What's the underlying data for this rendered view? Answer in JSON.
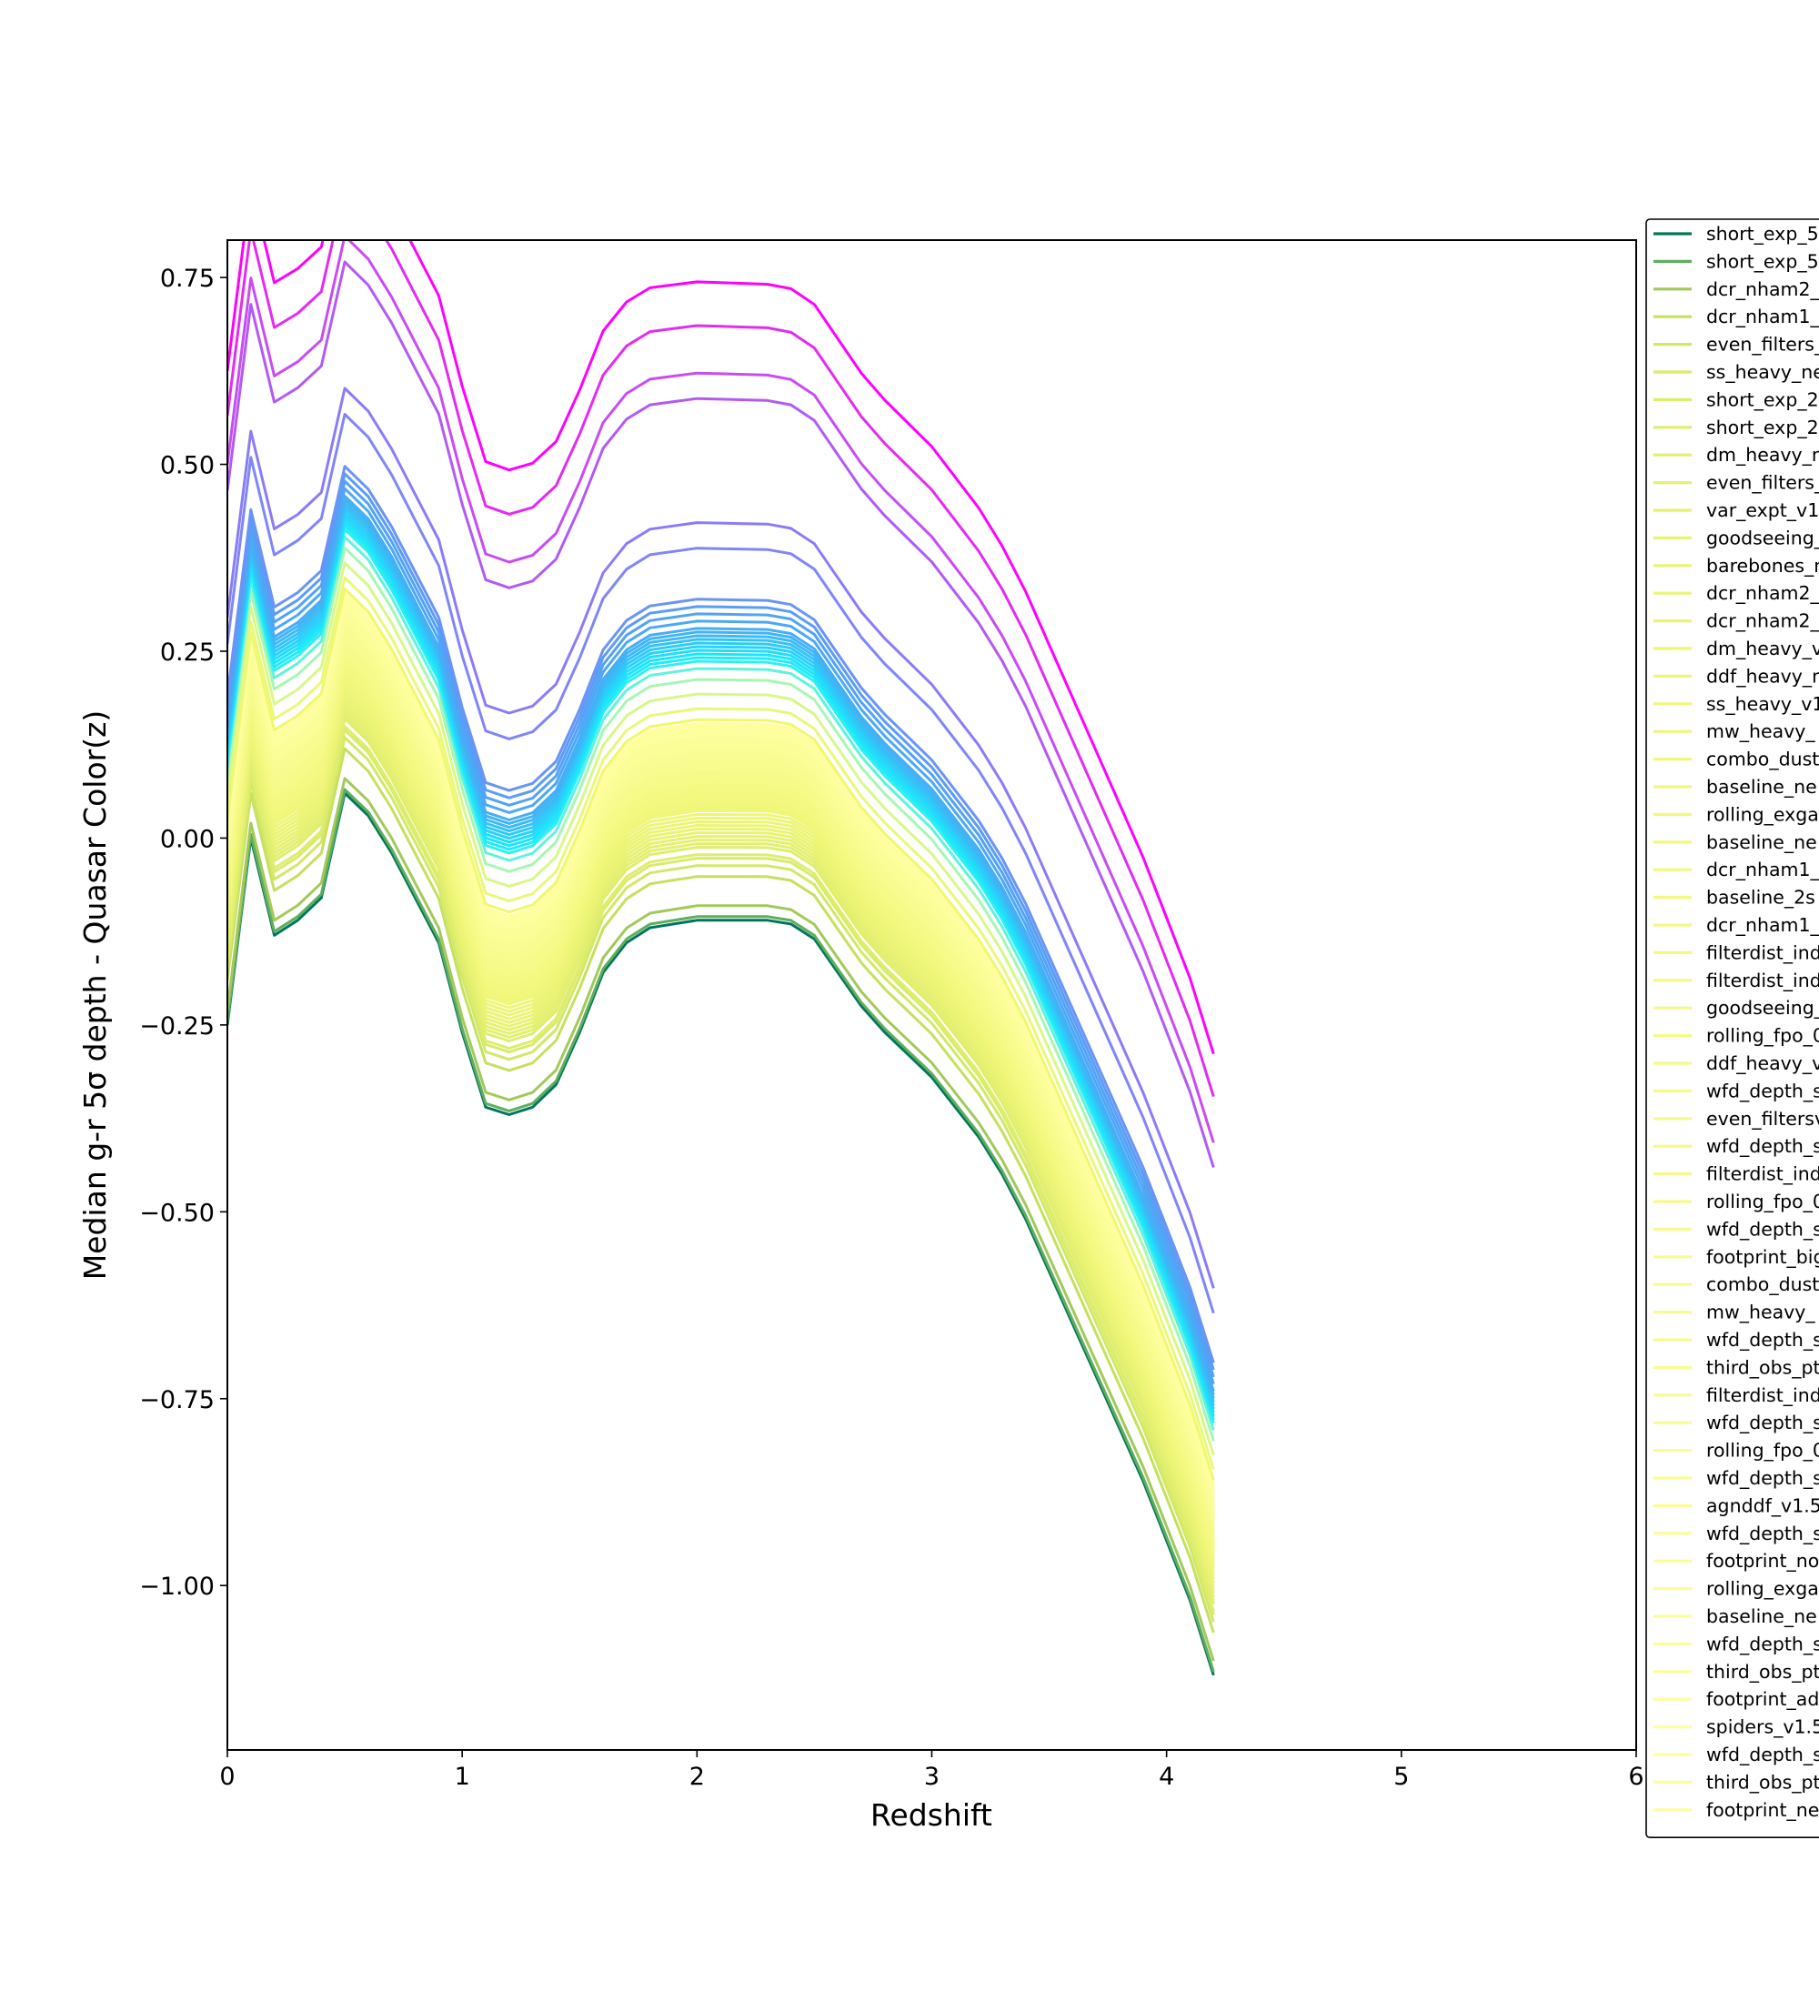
{
  "chart_data": {
    "type": "line",
    "xlabel": "Redshift",
    "ylabel": "Median g-r 5σ depth - Quasar Color(z)",
    "xlim": [
      0,
      6
    ],
    "ylim": [
      -1.22,
      0.8
    ],
    "x_ticks": [
      "0",
      "1",
      "2",
      "3",
      "4",
      "5",
      "6"
    ],
    "y_ticks": [
      "0.75",
      "0.50",
      "0.25",
      "0.00",
      "−0.25",
      "−0.50",
      "−0.75",
      "−1.00"
    ],
    "x_tick_values": [
      0,
      1,
      2,
      3,
      4,
      5,
      6
    ],
    "y_tick_values": [
      0.75,
      0.5,
      0.25,
      0.0,
      -0.25,
      -0.5,
      -0.75,
      -1.0
    ],
    "grid": false,
    "legend_placement": "outside right, clipped at figure edge",
    "colormap_note": "lines colored along a green-yellow-cyan-blue-magenta scale from lowest to highest",
    "x": [
      0,
      0.1,
      0.2,
      0.3,
      0.4,
      0.5,
      0.6,
      0.7,
      0.8,
      0.9,
      1.0,
      1.1,
      1.2,
      1.3,
      1.4,
      1.5,
      1.6,
      1.7,
      1.8,
      1.9,
      2.0,
      2.1,
      2.2,
      2.3,
      2.4,
      2.5,
      2.6,
      2.7,
      2.8,
      2.9,
      3.0,
      3.1,
      3.2,
      3.3,
      3.4,
      3.5,
      3.6,
      3.7,
      3.8,
      3.9,
      4.0,
      4.1,
      4.2
    ],
    "base_curve": [
      -0.25,
      0.0,
      -0.13,
      -0.11,
      -0.08,
      0.06,
      0.03,
      -0.02,
      -0.08,
      -0.14,
      -0.26,
      -0.36,
      -0.37,
      -0.36,
      -0.33,
      -0.26,
      -0.18,
      -0.14,
      -0.12,
      -0.115,
      -0.11,
      -0.11,
      -0.11,
      -0.11,
      -0.115,
      -0.135,
      -0.18,
      -0.225,
      -0.26,
      -0.29,
      -0.32,
      -0.36,
      -0.4,
      -0.45,
      -0.51,
      -0.58,
      -0.65,
      -0.72,
      -0.79,
      -0.86,
      -0.94,
      -1.02,
      -1.12
    ],
    "series": [
      {
        "name": "short_exp_5",
        "color": "#00775a",
        "offset": 0.0
      },
      {
        "name": "short_exp_5",
        "color": "#5fae5f",
        "offset": 0.005
      },
      {
        "name": "dcr_nham2_",
        "color": "#a3c95b",
        "offset": 0.02
      },
      {
        "name": "dcr_nham1_",
        "color": "#c6e060",
        "offset": 0.06
      },
      {
        "name": "even_filters_",
        "color": "#d3e868",
        "offset": 0.075
      },
      {
        "name": "ss_heavy_ne",
        "color": "#daeb6a",
        "offset": 0.085
      },
      {
        "name": "short_exp_2",
        "color": "#deed6c",
        "offset": 0.09
      },
      {
        "name": "short_exp_2",
        "color": "#e0ee6e",
        "offset": 0.1
      },
      {
        "name": "dm_heavy_n",
        "color": "#e2ef70",
        "offset": 0.105
      },
      {
        "name": "even_filters_",
        "color": "#e4f071",
        "offset": 0.11
      },
      {
        "name": "var_expt_v1",
        "color": "#e6f172",
        "offset": 0.115
      },
      {
        "name": "goodseeing_",
        "color": "#e8f273",
        "offset": 0.12
      },
      {
        "name": "barebones_n",
        "color": "#eaf374",
        "offset": 0.125
      },
      {
        "name": "dcr_nham2_",
        "color": "#ebf475",
        "offset": 0.13
      },
      {
        "name": "dcr_nham2_",
        "color": "#ecf476",
        "offset": 0.135
      },
      {
        "name": "dm_heavy_v",
        "color": "#edf577",
        "offset": 0.14
      },
      {
        "name": "ddf_heavy_n",
        "color": "#eef578",
        "offset": 0.145
      },
      {
        "name": "ss_heavy_v1",
        "color": "#eff679",
        "offset": 0.15
      },
      {
        "name": "mw_heavy_",
        "color": "#f0f67a",
        "offset": 0.153
      },
      {
        "name": "combo_dust",
        "color": "#f1f77b",
        "offset": 0.156
      },
      {
        "name": "baseline_ne",
        "color": "#f1f77c",
        "offset": 0.159
      },
      {
        "name": "rolling_exga",
        "color": "#f2f77d",
        "offset": 0.162
      },
      {
        "name": "baseline_ne",
        "color": "#f2f87e",
        "offset": 0.165
      },
      {
        "name": "dcr_nham1_",
        "color": "#f3f87f",
        "offset": 0.168
      },
      {
        "name": "baseline_2s",
        "color": "#f3f880",
        "offset": 0.171
      },
      {
        "name": "dcr_nham1_",
        "color": "#f4f881",
        "offset": 0.174
      },
      {
        "name": "filterdist_ind",
        "color": "#f4f982",
        "offset": 0.177
      },
      {
        "name": "filterdist_ind",
        "color": "#f4f983",
        "offset": 0.18
      },
      {
        "name": "goodseeing_",
        "color": "#f5f984",
        "offset": 0.183
      },
      {
        "name": "rolling_fpo_0",
        "color": "#f5f985",
        "offset": 0.186
      },
      {
        "name": "ddf_heavy_v",
        "color": "#f5f986",
        "offset": 0.189
      },
      {
        "name": "wfd_depth_s",
        "color": "#f6fa87",
        "offset": 0.192
      },
      {
        "name": "even_filtersv",
        "color": "#f6fa88",
        "offset": 0.195
      },
      {
        "name": "wfd_depth_s",
        "color": "#f6fa89",
        "offset": 0.198
      },
      {
        "name": "filterdist_ind",
        "color": "#f7fa8a",
        "offset": 0.201
      },
      {
        "name": "rolling_fpo_0",
        "color": "#f7fa8b",
        "offset": 0.204
      },
      {
        "name": "wfd_depth_s",
        "color": "#f7fb8c",
        "offset": 0.207
      },
      {
        "name": "footprint_big",
        "color": "#f8fb8d",
        "offset": 0.21
      },
      {
        "name": "combo_dust",
        "color": "#f8fb8e",
        "offset": 0.213
      },
      {
        "name": "mw_heavy_",
        "color": "#f8fb8f",
        "offset": 0.216
      },
      {
        "name": "wfd_depth_s",
        "color": "#f9fb90",
        "offset": 0.219
      },
      {
        "name": "third_obs_pt",
        "color": "#f9fc91",
        "offset": 0.222
      },
      {
        "name": "filterdist_ind",
        "color": "#f9fc92",
        "offset": 0.225
      },
      {
        "name": "wfd_depth_s",
        "color": "#fafc93",
        "offset": 0.228
      },
      {
        "name": "rolling_fpo_0",
        "color": "#fafc94",
        "offset": 0.231
      },
      {
        "name": "wfd_depth_s",
        "color": "#fafc95",
        "offset": 0.234
      },
      {
        "name": "agnddf_v1.5",
        "color": "#fbfd96",
        "offset": 0.237
      },
      {
        "name": "wfd_depth_s",
        "color": "#fbfd97",
        "offset": 0.24
      },
      {
        "name": "footprint_no",
        "color": "#fbfd98",
        "offset": 0.243
      },
      {
        "name": "rolling_exga",
        "color": "#fcfd99",
        "offset": 0.246
      },
      {
        "name": "baseline_ne",
        "color": "#fcfd9a",
        "offset": 0.249
      },
      {
        "name": "wfd_depth_s",
        "color": "#fcfd9b",
        "offset": 0.252
      },
      {
        "name": "third_obs_pt",
        "color": "#fdfe9c",
        "offset": 0.255
      },
      {
        "name": "footprint_ad",
        "color": "#fdfe9d",
        "offset": 0.258
      },
      {
        "name": "spiders_v1.5",
        "color": "#fdfe9e",
        "offset": 0.261
      },
      {
        "name": "wfd_depth_s",
        "color": "#fefe9f",
        "offset": 0.264
      },
      {
        "name": "third_obs_pt",
        "color": "#fefea0",
        "offset": 0.267
      },
      {
        "name": "footprint_ne",
        "color": "#fefea1",
        "offset": 0.27
      },
      {
        "color": "#f0f870",
        "offset": 0.275
      },
      {
        "color": "#eaf87a",
        "offset": 0.29
      },
      {
        "color": "#d8f88a",
        "offset": 0.31
      },
      {
        "color": "#a8f6b4",
        "offset": 0.33
      },
      {
        "color": "#60f2e0",
        "offset": 0.345
      },
      {
        "color": "#2ef0f4",
        "offset": 0.355
      },
      {
        "color": "#22eaf8",
        "offset": 0.36
      },
      {
        "color": "#1ee4fa",
        "offset": 0.365
      },
      {
        "color": "#22dcfa",
        "offset": 0.37
      },
      {
        "color": "#28d2fa",
        "offset": 0.375
      },
      {
        "color": "#2ecafa",
        "offset": 0.38
      },
      {
        "color": "#34c2f8",
        "offset": 0.385
      },
      {
        "color": "#3abaf6",
        "offset": 0.39
      },
      {
        "color": "#40b4f6",
        "offset": 0.395
      },
      {
        "color": "#46aef6",
        "offset": 0.4
      },
      {
        "color": "#4ca8f6",
        "offset": 0.41
      },
      {
        "color": "#52a2f6",
        "offset": 0.42
      },
      {
        "color": "#5a9cf6",
        "offset": 0.43
      },
      {
        "color": "#6a94f6",
        "offset": 0.44
      },
      {
        "color": "#7f86f8",
        "offset": 0.51
      },
      {
        "color": "#8a7cf8",
        "offset": 0.545
      },
      {
        "color": "#b25af4",
        "offset": 0.715
      },
      {
        "color": "#c84cf2",
        "offset": 0.75
      },
      {
        "color": "#e22cf0",
        "offset": 0.815
      },
      {
        "color": "#ff00ff",
        "offset": 0.875
      }
    ]
  }
}
